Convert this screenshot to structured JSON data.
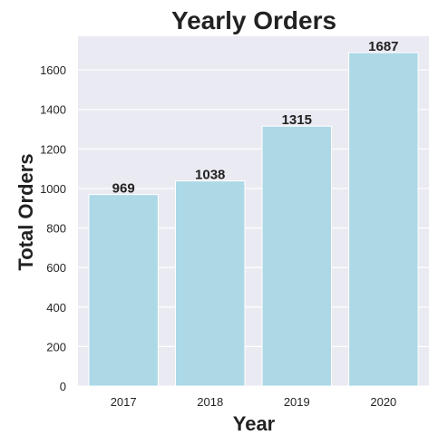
{
  "chart_data": {
    "type": "bar",
    "title": "Yearly Orders",
    "xlabel": "Year",
    "ylabel": "Total Orders",
    "categories": [
      "2017",
      "2018",
      "2019",
      "2020"
    ],
    "values": [
      969,
      1038,
      1315,
      1687
    ],
    "data_labels": [
      "969",
      "1038",
      "1315",
      "1687"
    ],
    "ylim": [
      0,
      1770
    ],
    "yticks": [
      0,
      200,
      400,
      600,
      800,
      1000,
      1200,
      1400,
      1600
    ],
    "ytick_labels": [
      "0",
      "200",
      "400",
      "600",
      "800",
      "1000",
      "1200",
      "1400",
      "1600"
    ],
    "grid": true,
    "colors": {
      "bar": "#add8e6",
      "plot_bg": "#eaeaf2",
      "grid": "#ffffff"
    }
  }
}
